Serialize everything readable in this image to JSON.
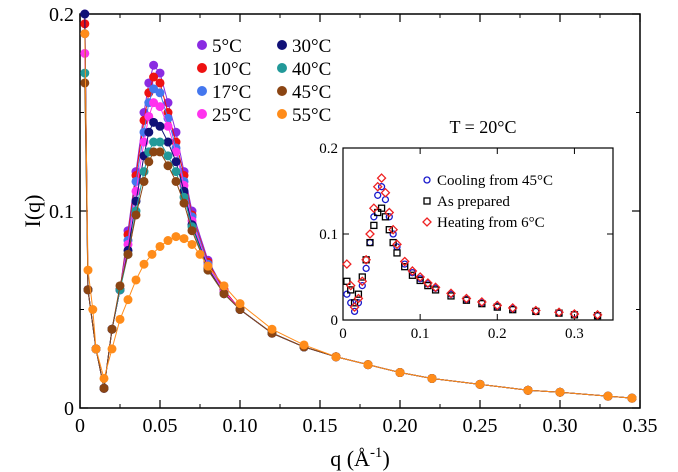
{
  "chart_data": [
    {
      "type": "scatter",
      "title": "",
      "xlabel": "q (Å",
      "xlabel_sup": "-1",
      "xlabel_close": ")",
      "ylabel": "I(q)",
      "xlim": [
        0,
        0.35
      ],
      "ylim": [
        0,
        0.2
      ],
      "x_ticks": [
        0,
        0.05,
        0.1,
        0.15,
        0.2,
        0.25,
        0.3,
        0.35
      ],
      "x_tick_labels": [
        "0",
        "0.05",
        "0.10",
        "0.15",
        "0.20",
        "0.25",
        "0.30",
        "0.35"
      ],
      "y_ticks": [
        0,
        0.1,
        0.2
      ],
      "y_tick_labels": [
        "0",
        "0.1",
        "0.2"
      ],
      "legend_position": "top-center",
      "series": [
        {
          "name": "5°C",
          "color": "#8a2be2",
          "x": [
            0.003,
            0.005,
            0.01,
            0.015,
            0.02,
            0.025,
            0.03,
            0.035,
            0.04,
            0.043,
            0.046,
            0.05,
            0.055,
            0.06,
            0.065,
            0.07,
            0.08,
            0.09,
            0.1,
            0.12,
            0.14,
            0.16,
            0.18,
            0.2,
            0.22,
            0.25,
            0.28,
            0.3,
            0.33,
            0.345
          ],
          "y": [
            0.2,
            0.06,
            0.03,
            0.01,
            0.04,
            0.06,
            0.09,
            0.12,
            0.15,
            0.165,
            0.174,
            0.17,
            0.155,
            0.14,
            0.12,
            0.1,
            0.075,
            0.06,
            0.05,
            0.038,
            0.031,
            0.026,
            0.022,
            0.018,
            0.015,
            0.012,
            0.009,
            0.008,
            0.006,
            0.005
          ]
        },
        {
          "name": "10°C",
          "color": "#ee1111",
          "x": [
            0.003,
            0.005,
            0.01,
            0.015,
            0.02,
            0.025,
            0.03,
            0.035,
            0.04,
            0.043,
            0.046,
            0.05,
            0.055,
            0.06,
            0.065,
            0.07,
            0.08,
            0.09,
            0.1,
            0.12,
            0.14,
            0.16,
            0.18,
            0.2,
            0.22,
            0.25,
            0.28,
            0.3,
            0.33,
            0.345
          ],
          "y": [
            0.195,
            0.06,
            0.03,
            0.01,
            0.04,
            0.06,
            0.088,
            0.118,
            0.146,
            0.16,
            0.168,
            0.165,
            0.15,
            0.135,
            0.118,
            0.098,
            0.074,
            0.06,
            0.05,
            0.038,
            0.031,
            0.026,
            0.022,
            0.018,
            0.015,
            0.012,
            0.009,
            0.008,
            0.006,
            0.005
          ]
        },
        {
          "name": "17°C",
          "color": "#4477ee",
          "x": [
            0.003,
            0.005,
            0.01,
            0.015,
            0.02,
            0.025,
            0.03,
            0.035,
            0.04,
            0.043,
            0.046,
            0.05,
            0.055,
            0.06,
            0.065,
            0.07,
            0.08,
            0.09,
            0.1,
            0.12,
            0.14,
            0.16,
            0.18,
            0.2,
            0.22,
            0.25,
            0.28,
            0.3,
            0.33,
            0.345
          ],
          "y": [
            0.19,
            0.06,
            0.03,
            0.01,
            0.04,
            0.06,
            0.085,
            0.115,
            0.14,
            0.155,
            0.162,
            0.16,
            0.147,
            0.132,
            0.115,
            0.097,
            0.073,
            0.059,
            0.05,
            0.038,
            0.031,
            0.026,
            0.022,
            0.018,
            0.015,
            0.012,
            0.009,
            0.008,
            0.006,
            0.005
          ]
        },
        {
          "name": "25°C",
          "color": "#ff33ee",
          "x": [
            0.003,
            0.005,
            0.01,
            0.015,
            0.02,
            0.025,
            0.03,
            0.035,
            0.04,
            0.043,
            0.046,
            0.05,
            0.055,
            0.06,
            0.065,
            0.07,
            0.08,
            0.09,
            0.1,
            0.12,
            0.14,
            0.16,
            0.18,
            0.2,
            0.22,
            0.25,
            0.28,
            0.3,
            0.33,
            0.345
          ],
          "y": [
            0.18,
            0.06,
            0.03,
            0.01,
            0.04,
            0.06,
            0.083,
            0.11,
            0.135,
            0.148,
            0.155,
            0.153,
            0.143,
            0.13,
            0.113,
            0.095,
            0.072,
            0.059,
            0.05,
            0.038,
            0.031,
            0.026,
            0.022,
            0.018,
            0.015,
            0.012,
            0.009,
            0.008,
            0.006,
            0.005
          ]
        },
        {
          "name": "30°C",
          "color": "#111177",
          "x": [
            0.003,
            0.005,
            0.01,
            0.015,
            0.02,
            0.025,
            0.03,
            0.035,
            0.04,
            0.043,
            0.046,
            0.05,
            0.055,
            0.06,
            0.065,
            0.07,
            0.08,
            0.09,
            0.1,
            0.12,
            0.14,
            0.16,
            0.18,
            0.2,
            0.22,
            0.25,
            0.28,
            0.3,
            0.33,
            0.345
          ],
          "y": [
            0.2,
            0.06,
            0.03,
            0.01,
            0.04,
            0.06,
            0.08,
            0.105,
            0.128,
            0.14,
            0.145,
            0.143,
            0.135,
            0.125,
            0.11,
            0.093,
            0.071,
            0.058,
            0.05,
            0.038,
            0.031,
            0.026,
            0.022,
            0.018,
            0.015,
            0.012,
            0.009,
            0.008,
            0.006,
            0.005
          ]
        },
        {
          "name": "40°C",
          "color": "#229999",
          "x": [
            0.003,
            0.005,
            0.01,
            0.015,
            0.02,
            0.025,
            0.03,
            0.035,
            0.04,
            0.043,
            0.046,
            0.05,
            0.055,
            0.06,
            0.065,
            0.07,
            0.08,
            0.09,
            0.1,
            0.12,
            0.14,
            0.16,
            0.18,
            0.2,
            0.22,
            0.25,
            0.28,
            0.3,
            0.33,
            0.345
          ],
          "y": [
            0.17,
            0.06,
            0.03,
            0.01,
            0.04,
            0.06,
            0.078,
            0.1,
            0.12,
            0.13,
            0.135,
            0.135,
            0.128,
            0.12,
            0.107,
            0.092,
            0.07,
            0.058,
            0.05,
            0.038,
            0.031,
            0.026,
            0.022,
            0.018,
            0.015,
            0.012,
            0.009,
            0.008,
            0.006,
            0.005
          ]
        },
        {
          "name": "45°C",
          "color": "#8b4513",
          "x": [
            0.003,
            0.005,
            0.01,
            0.015,
            0.02,
            0.025,
            0.03,
            0.035,
            0.04,
            0.043,
            0.046,
            0.05,
            0.055,
            0.06,
            0.065,
            0.07,
            0.08,
            0.09,
            0.1,
            0.12,
            0.14,
            0.16,
            0.18,
            0.2,
            0.22,
            0.25,
            0.28,
            0.3,
            0.33,
            0.345
          ],
          "y": [
            0.165,
            0.06,
            0.03,
            0.01,
            0.04,
            0.062,
            0.078,
            0.098,
            0.115,
            0.125,
            0.13,
            0.13,
            0.123,
            0.115,
            0.104,
            0.09,
            0.07,
            0.058,
            0.05,
            0.038,
            0.031,
            0.026,
            0.022,
            0.018,
            0.015,
            0.012,
            0.009,
            0.008,
            0.006,
            0.005
          ]
        },
        {
          "name": "55°C",
          "color": "#ff8c1a",
          "x": [
            0.003,
            0.005,
            0.008,
            0.01,
            0.015,
            0.02,
            0.025,
            0.03,
            0.035,
            0.04,
            0.045,
            0.05,
            0.055,
            0.06,
            0.065,
            0.07,
            0.075,
            0.08,
            0.09,
            0.1,
            0.12,
            0.14,
            0.16,
            0.18,
            0.2,
            0.22,
            0.25,
            0.28,
            0.3,
            0.33,
            0.345
          ],
          "y": [
            0.19,
            0.07,
            0.05,
            0.03,
            0.015,
            0.03,
            0.045,
            0.055,
            0.065,
            0.073,
            0.078,
            0.082,
            0.085,
            0.087,
            0.086,
            0.083,
            0.078,
            0.072,
            0.062,
            0.053,
            0.04,
            0.032,
            0.026,
            0.022,
            0.018,
            0.015,
            0.012,
            0.009,
            0.008,
            0.006,
            0.005
          ]
        }
      ]
    },
    {
      "type": "scatter",
      "title": "",
      "annotation": "T = 20°C",
      "xlim": [
        0,
        0.35
      ],
      "ylim": [
        0,
        0.2
      ],
      "x_ticks": [
        0,
        0.1,
        0.2,
        0.3
      ],
      "x_tick_labels": [
        "0",
        "0.1",
        "0.2",
        "0.3"
      ],
      "y_ticks": [
        0,
        0.1,
        0.2
      ],
      "y_tick_labels": [
        "0",
        "0.1",
        "0.2"
      ],
      "legend_position": "top-right",
      "series": [
        {
          "name": "Cooling from 45°C",
          "color": "#1a1acc",
          "marker": "circle",
          "x": [
            0.005,
            0.01,
            0.015,
            0.02,
            0.025,
            0.03,
            0.035,
            0.04,
            0.045,
            0.05,
            0.055,
            0.06,
            0.065,
            0.07,
            0.08,
            0.09,
            0.1,
            0.11,
            0.12,
            0.14,
            0.16,
            0.18,
            0.2,
            0.22,
            0.25,
            0.28,
            0.3,
            0.33
          ],
          "y": [
            0.03,
            0.02,
            0.01,
            0.02,
            0.04,
            0.06,
            0.09,
            0.12,
            0.145,
            0.155,
            0.14,
            0.12,
            0.1,
            0.085,
            0.065,
            0.055,
            0.048,
            0.042,
            0.037,
            0.03,
            0.024,
            0.02,
            0.016,
            0.013,
            0.01,
            0.008,
            0.007,
            0.005
          ]
        },
        {
          "name": "As prepared",
          "color": "#000000",
          "marker": "square",
          "x": [
            0.005,
            0.01,
            0.015,
            0.02,
            0.025,
            0.03,
            0.035,
            0.04,
            0.045,
            0.05,
            0.055,
            0.06,
            0.065,
            0.07,
            0.08,
            0.09,
            0.1,
            0.11,
            0.12,
            0.14,
            0.16,
            0.18,
            0.2,
            0.22,
            0.25,
            0.28,
            0.3,
            0.33
          ],
          "y": [
            0.045,
            0.035,
            0.02,
            0.03,
            0.05,
            0.07,
            0.09,
            0.11,
            0.125,
            0.13,
            0.12,
            0.105,
            0.09,
            0.078,
            0.062,
            0.052,
            0.046,
            0.04,
            0.035,
            0.028,
            0.023,
            0.019,
            0.015,
            0.012,
            0.01,
            0.008,
            0.006,
            0.005
          ]
        },
        {
          "name": "Heating from 6°C",
          "color": "#ee2222",
          "marker": "diamond",
          "x": [
            0.005,
            0.01,
            0.015,
            0.02,
            0.025,
            0.03,
            0.035,
            0.04,
            0.045,
            0.05,
            0.055,
            0.06,
            0.065,
            0.07,
            0.08,
            0.09,
            0.1,
            0.11,
            0.12,
            0.14,
            0.16,
            0.18,
            0.2,
            0.22,
            0.25,
            0.28,
            0.3,
            0.33
          ],
          "y": [
            0.065,
            0.04,
            0.015,
            0.025,
            0.045,
            0.07,
            0.1,
            0.13,
            0.155,
            0.165,
            0.148,
            0.125,
            0.105,
            0.088,
            0.068,
            0.057,
            0.05,
            0.043,
            0.038,
            0.031,
            0.025,
            0.021,
            0.017,
            0.014,
            0.011,
            0.009,
            0.007,
            0.006
          ]
        }
      ]
    }
  ]
}
